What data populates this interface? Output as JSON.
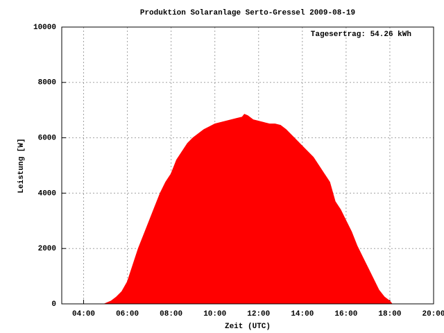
{
  "chart_data": {
    "type": "area",
    "title": "Produktion Solaranlage Serto-Gressel 2009-08-19",
    "x_label": "Zeit (UTC)",
    "y_label": "Leistung [W]",
    "annotation": "Tagesertrag: 54.26 kWh",
    "color": "#ff0000",
    "grid": true,
    "xlim": [
      3,
      20
    ],
    "xticks": [
      {
        "value": 4,
        "label": "04:00"
      },
      {
        "value": 6,
        "label": "06:00"
      },
      {
        "value": 8,
        "label": "08:00"
      },
      {
        "value": 10,
        "label": "10:00"
      },
      {
        "value": 12,
        "label": "12:00"
      },
      {
        "value": 14,
        "label": "14:00"
      },
      {
        "value": 16,
        "label": "16:00"
      },
      {
        "value": 18,
        "label": "18:00"
      },
      {
        "value": 20,
        "label": "20:00"
      }
    ],
    "ylim": [
      0,
      10000
    ],
    "yticks": [
      0,
      2000,
      4000,
      6000,
      8000,
      10000
    ],
    "x": [
      4.95,
      5.25,
      5.5,
      5.75,
      6,
      6.25,
      6.5,
      6.75,
      7,
      7.25,
      7.5,
      7.75,
      8,
      8.25,
      8.5,
      8.75,
      9,
      9.25,
      9.5,
      9.75,
      10,
      10.25,
      10.5,
      10.75,
      11,
      11.25,
      11.35,
      11.5,
      11.75,
      12,
      12.25,
      12.5,
      12.75,
      13,
      13.25,
      13.5,
      13.75,
      14,
      14.25,
      14.5,
      14.75,
      15,
      15.25,
      15.5,
      15.75,
      16,
      16.25,
      16.5,
      16.75,
      17,
      17.25,
      17.5,
      17.75,
      18,
      18.1
    ],
    "values": [
      0,
      100,
      250,
      450,
      800,
      1400,
      2000,
      2500,
      3000,
      3500,
      4000,
      4400,
      4700,
      5200,
      5500,
      5800,
      6000,
      6150,
      6300,
      6400,
      6500,
      6550,
      6600,
      6650,
      6700,
      6750,
      6850,
      6800,
      6650,
      6600,
      6550,
      6500,
      6500,
      6450,
      6300,
      6100,
      5900,
      5700,
      5500,
      5300,
      5000,
      4700,
      4400,
      3700,
      3400,
      3000,
      2600,
      2100,
      1700,
      1300,
      900,
      500,
      250,
      100,
      0
    ]
  }
}
